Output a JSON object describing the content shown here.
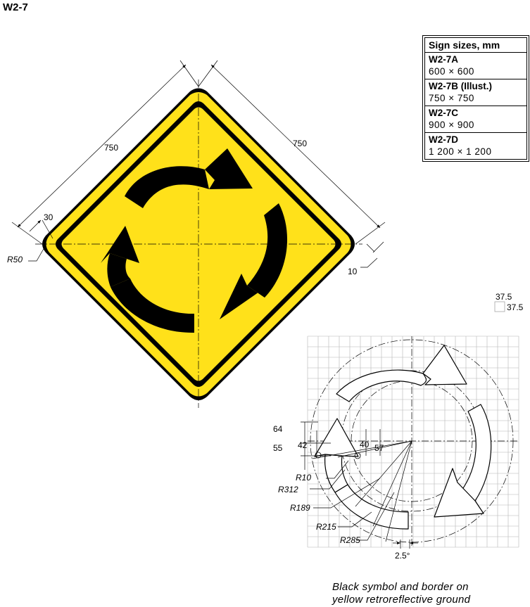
{
  "sign_code": "W2-7",
  "sizes_table": {
    "header": "Sign sizes, mm",
    "rows": [
      {
        "code": "W2-7A",
        "size": "600 × 600"
      },
      {
        "code": "W2-7B (Illust.)",
        "size": "750 × 750"
      },
      {
        "code": "W2-7C",
        "size": "900 × 900"
      },
      {
        "code": "W2-7D",
        "size": "1 200 × 1 200"
      }
    ]
  },
  "sign_dimensions": {
    "side_left": "750",
    "side_right": "750",
    "border_offset": "30",
    "corner_radius": "R50",
    "border_width": "10"
  },
  "grid_labels": {
    "grid_step_x": "37.5",
    "grid_step_y": "37.5"
  },
  "arrow_dimensions": {
    "d64": "64",
    "d55": "55",
    "d42": "42",
    "d40": "40",
    "d57": "57",
    "r10": "R10",
    "r312": "R312",
    "r189": "R189",
    "r215": "R215",
    "r285": "R285",
    "angle": "2.5°"
  },
  "footer_note": {
    "line1": "Black symbol and border on",
    "line2": "yellow retroreflective ground"
  },
  "colors": {
    "sign_yellow": "#ffe11a",
    "symbol_black": "#000000",
    "grid_gray": "#b5b5b5"
  }
}
